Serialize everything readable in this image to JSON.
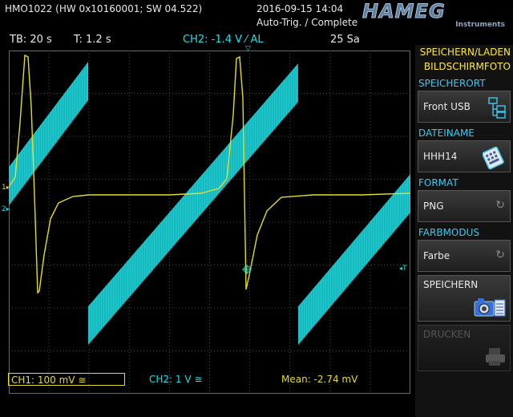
{
  "header": {
    "device": "HMO1022 (HW 0x10160001; SW 04.522)",
    "datetime": "2016-09-15 14:04",
    "trigger_status": "Auto-Trig. / Complete",
    "logo": "HAMEG",
    "logo_sub": "Instruments"
  },
  "status_bar": {
    "timebase": "TB: 20 s",
    "trigger_time": "T: 1.2 s",
    "trigger_setting": "CH2: -1.4 V ⁄ AL",
    "sample_rate": "25 Sa"
  },
  "markers": {
    "ch1": "1",
    "ch2": "2",
    "trigger_level": "T"
  },
  "bottom_bar": {
    "ch1_scale": "CH1: 100 mV ≅",
    "ch2_scale": "CH2: 1 V ≅",
    "measurement": "Mean: -2.74 mV"
  },
  "menu": {
    "title_line1": "SPEICHERN/LADEN",
    "title_line2": "BILDSCHIRMFOTO",
    "location_label": "SPEICHERORT",
    "location_value": "Front USB",
    "filename_label": "DATEINAME",
    "filename_value": "HHH14",
    "format_label": "FORMAT",
    "format_value": "PNG",
    "color_label": "FARBMODUS",
    "color_value": "Farbe",
    "save_label": "SPEICHERN",
    "print_label": "DRUCKEN"
  },
  "colors": {
    "ch1": "#e4dc2a",
    "ch2": "#1fe0e6",
    "menu_title": "#ffe93a",
    "menu_label": "#3cc8f0",
    "grid": "#6a6a6a"
  }
}
